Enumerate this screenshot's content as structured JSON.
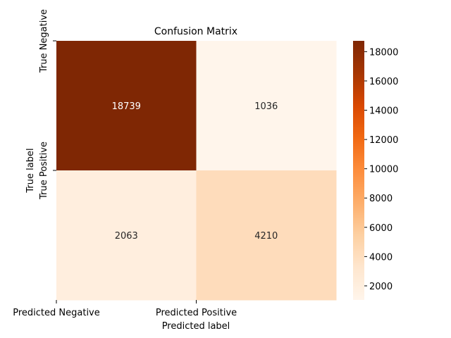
{
  "chart_data": {
    "type": "heatmap",
    "title": "Confusion Matrix",
    "xlabel": "Predicted label",
    "ylabel": "True label",
    "x_categories": [
      "Predicted Negative",
      "Predicted Positive"
    ],
    "y_categories": [
      "True Negative",
      "True Positive"
    ],
    "values": [
      [
        18739,
        1036
      ],
      [
        2063,
        4210
      ]
    ],
    "colormap": "Oranges",
    "colorbar": {
      "range": [
        1036,
        18739
      ],
      "ticks": [
        2000,
        4000,
        6000,
        8000,
        10000,
        12000,
        14000,
        16000,
        18000
      ]
    }
  }
}
